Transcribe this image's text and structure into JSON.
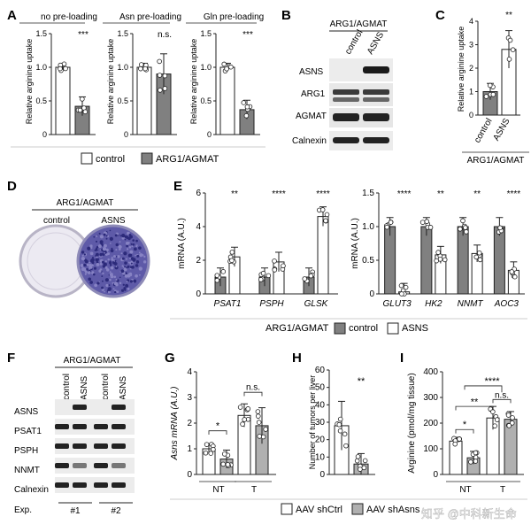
{
  "panels": {
    "A": {
      "letter": "A",
      "ylabel": "Relative arginine uptake",
      "legend": [
        "control",
        "ARG1/AGMAT"
      ],
      "colors": {
        "control": "#ffffff",
        "treated": "#808080"
      },
      "chart_data": [
        {
          "type": "bar",
          "title": "no pre-loading",
          "ylim": [
            0,
            1.5
          ],
          "yticks": [
            0,
            0.5,
            1.0,
            1.5
          ],
          "ytick_labels": [
            "0",
            "0.5",
            "1.0",
            "1.5"
          ],
          "values": [
            1.0,
            0.42
          ],
          "sig": "***"
        },
        {
          "type": "bar",
          "title": "Asn pre-loading",
          "ylim": [
            0,
            1.5
          ],
          "yticks": [
            0,
            0.5,
            1.0,
            1.5
          ],
          "ytick_labels": [
            "0",
            "0.5",
            "1.0",
            "1.5"
          ],
          "values": [
            1.0,
            0.9
          ],
          "sig": "n.s."
        },
        {
          "type": "bar",
          "title": "Gln pre-loading",
          "ylim": [
            0,
            1.5
          ],
          "yticks": [
            0,
            0.5,
            1.0,
            1.5
          ],
          "ytick_labels": [
            "0",
            "0.5",
            "1.0",
            "1.5"
          ],
          "values": [
            1.0,
            0.37
          ],
          "sig": "***"
        }
      ]
    },
    "B": {
      "letter": "B",
      "header": "ARG1/AGMAT",
      "lanes": [
        "control",
        "ASNS"
      ],
      "rows": [
        "ASNS",
        "ARG1",
        "AGMAT",
        "Calnexin"
      ]
    },
    "C": {
      "letter": "C",
      "chart_data": {
        "type": "bar",
        "ylabel": "Relative arginine uptake",
        "ylim": [
          0,
          4
        ],
        "yticks": [
          0,
          1,
          2,
          3,
          4
        ],
        "ytick_labels": [
          "0",
          "1",
          "2",
          "3",
          "4"
        ],
        "categories": [
          "control",
          "ASNS"
        ],
        "values": [
          1.0,
          2.8
        ],
        "sig": "**",
        "footer": "ARG1/AGMAT"
      }
    },
    "D": {
      "letter": "D",
      "header": "ARG1/AGMAT",
      "labels": [
        "control",
        "ASNS"
      ]
    },
    "E": {
      "letter": "E",
      "legend_title": "ARG1/AGMAT",
      "legend": [
        "control",
        "ASNS"
      ],
      "chart_data": [
        {
          "type": "bar",
          "ylabel": "mRNA (A.U.)",
          "ylim": [
            0,
            6
          ],
          "yticks": [
            0,
            2,
            4,
            6
          ],
          "ytick_labels": [
            "0",
            "2",
            "4",
            "6"
          ],
          "categories": [
            "PSAT1",
            "PSPH",
            "GLSK"
          ],
          "series": [
            {
              "name": "control",
              "values": [
                1.0,
                1.0,
                1.0
              ]
            },
            {
              "name": "ASNS",
              "values": [
                2.2,
                1.9,
                4.6
              ]
            }
          ],
          "sig": [
            "**",
            "****",
            "****"
          ]
        },
        {
          "type": "bar",
          "ylabel": "mRNA (A.U.)",
          "ylim": [
            0,
            1.5
          ],
          "yticks": [
            0,
            0.5,
            1.0,
            1.5
          ],
          "ytick_labels": [
            "0",
            "0.5",
            "1.0",
            "1.5"
          ],
          "categories": [
            "GLUT3",
            "HK2",
            "NNMT",
            "AOC3"
          ],
          "series": [
            {
              "name": "control",
              "values": [
                1.0,
                1.0,
                1.0,
                1.0
              ]
            },
            {
              "name": "ASNS",
              "values": [
                0.03,
                0.58,
                0.6,
                0.35
              ]
            }
          ],
          "sig": [
            "****",
            "**",
            "**",
            "****"
          ]
        }
      ]
    },
    "F": {
      "letter": "F",
      "header": "ARG1/AGMAT",
      "lanes": [
        "control",
        "ASNS",
        "control",
        "ASNS"
      ],
      "rows": [
        "ASNS",
        "PSAT1",
        "PSPH",
        "NNMT",
        "Calnexin"
      ],
      "exp_label": "Exp.",
      "exps": [
        "#1",
        "#2"
      ]
    },
    "G": {
      "letter": "G",
      "chart_data": {
        "type": "bar",
        "ylabel": "Asns mRNA (A.U.)",
        "ylim": [
          0,
          4
        ],
        "yticks": [
          0,
          1,
          2,
          3,
          4
        ],
        "ytick_labels": [
          "0",
          "1",
          "2",
          "3",
          "4"
        ],
        "categories": [
          "NT",
          "T"
        ],
        "series": [
          {
            "name": "AAV shCtrl",
            "values": [
              1.0,
              2.3
            ]
          },
          {
            "name": "AAV shAsns",
            "values": [
              0.6,
              1.9
            ]
          }
        ],
        "sig": [
          "*",
          "n.s."
        ]
      }
    },
    "H": {
      "letter": "H",
      "chart_data": {
        "type": "bar",
        "ylabel": "Number of tumors per liver",
        "ylim": [
          0,
          60
        ],
        "yticks": [
          0,
          10,
          20,
          30,
          40,
          50,
          60
        ],
        "ytick_labels": [
          "0",
          "10",
          "20",
          "30",
          "40",
          "50",
          "60"
        ],
        "series": [
          {
            "name": "AAV shCtrl",
            "values": [
              28
            ]
          },
          {
            "name": "AAV shAsns",
            "values": [
              6
            ]
          }
        ],
        "sig": "**"
      }
    },
    "I": {
      "letter": "I",
      "chart_data": {
        "type": "bar",
        "ylabel": "Arginine (pmol/mg tissue)",
        "ylim": [
          0,
          400
        ],
        "yticks": [
          0,
          100,
          200,
          300,
          400
        ],
        "ytick_labels": [
          "0",
          "100",
          "200",
          "300",
          "400"
        ],
        "categories": [
          "NT",
          "T"
        ],
        "series": [
          {
            "name": "AAV shCtrl",
            "values": [
              130,
              220
            ]
          },
          {
            "name": "AAV shAsns",
            "values": [
              65,
              215
            ]
          }
        ],
        "sig": {
          "within_NT": "*",
          "within_T": "n.s.",
          "NT_vs_T_ctrl": "**",
          "NT_vs_T_group": "****"
        }
      }
    },
    "bottom_legend": [
      "AAV shCtrl",
      "AAV shAsns"
    ],
    "watermark": "知乎 @中科新生命"
  }
}
